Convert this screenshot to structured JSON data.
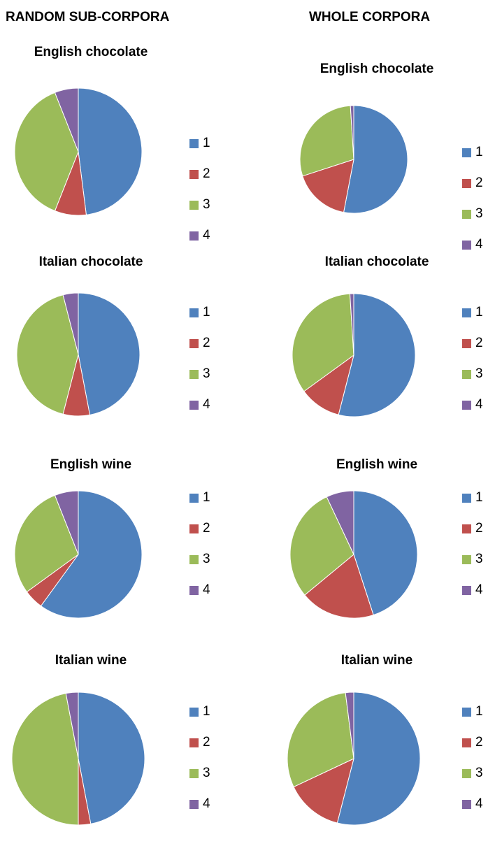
{
  "columns": [
    "RANDOM SUB-CORPORA",
    "WHOLE CORPORA"
  ],
  "legend_labels": [
    "1",
    "2",
    "3",
    "4"
  ],
  "colors": [
    "#4f81bd",
    "#c0504d",
    "#9bbb59",
    "#8064a2"
  ],
  "chart_data": [
    {
      "type": "pie",
      "group": "RANDOM SUB-CORPORA",
      "title": "English chocolate",
      "categories": [
        "1",
        "2",
        "3",
        "4"
      ],
      "values": [
        48,
        8,
        38,
        6
      ]
    },
    {
      "type": "pie",
      "group": "WHOLE CORPORA",
      "title": "English chocolate",
      "categories": [
        "1",
        "2",
        "3",
        "4"
      ],
      "values": [
        53,
        17,
        29,
        1
      ]
    },
    {
      "type": "pie",
      "group": "RANDOM SUB-CORPORA",
      "title": "Italian chocolate",
      "categories": [
        "1",
        "2",
        "3",
        "4"
      ],
      "values": [
        47,
        7,
        42,
        4
      ]
    },
    {
      "type": "pie",
      "group": "WHOLE CORPORA",
      "title": "Italian chocolate",
      "categories": [
        "1",
        "2",
        "3",
        "4"
      ],
      "values": [
        54,
        11,
        34,
        1
      ]
    },
    {
      "type": "pie",
      "group": "RANDOM SUB-CORPORA",
      "title": "English wine",
      "categories": [
        "1",
        "2",
        "3",
        "4"
      ],
      "values": [
        60,
        5,
        29,
        6
      ]
    },
    {
      "type": "pie",
      "group": "WHOLE CORPORA",
      "title": "English wine",
      "categories": [
        "1",
        "2",
        "3",
        "4"
      ],
      "values": [
        45,
        19,
        29,
        7
      ]
    },
    {
      "type": "pie",
      "group": "RANDOM SUB-CORPORA",
      "title": "Italian wine",
      "categories": [
        "1",
        "2",
        "3",
        "4"
      ],
      "values": [
        47,
        3,
        47,
        3
      ]
    },
    {
      "type": "pie",
      "group": "WHOLE CORPORA",
      "title": "Italian wine",
      "categories": [
        "1",
        "2",
        "3",
        "4"
      ],
      "values": [
        54,
        14,
        30,
        2
      ]
    }
  ]
}
